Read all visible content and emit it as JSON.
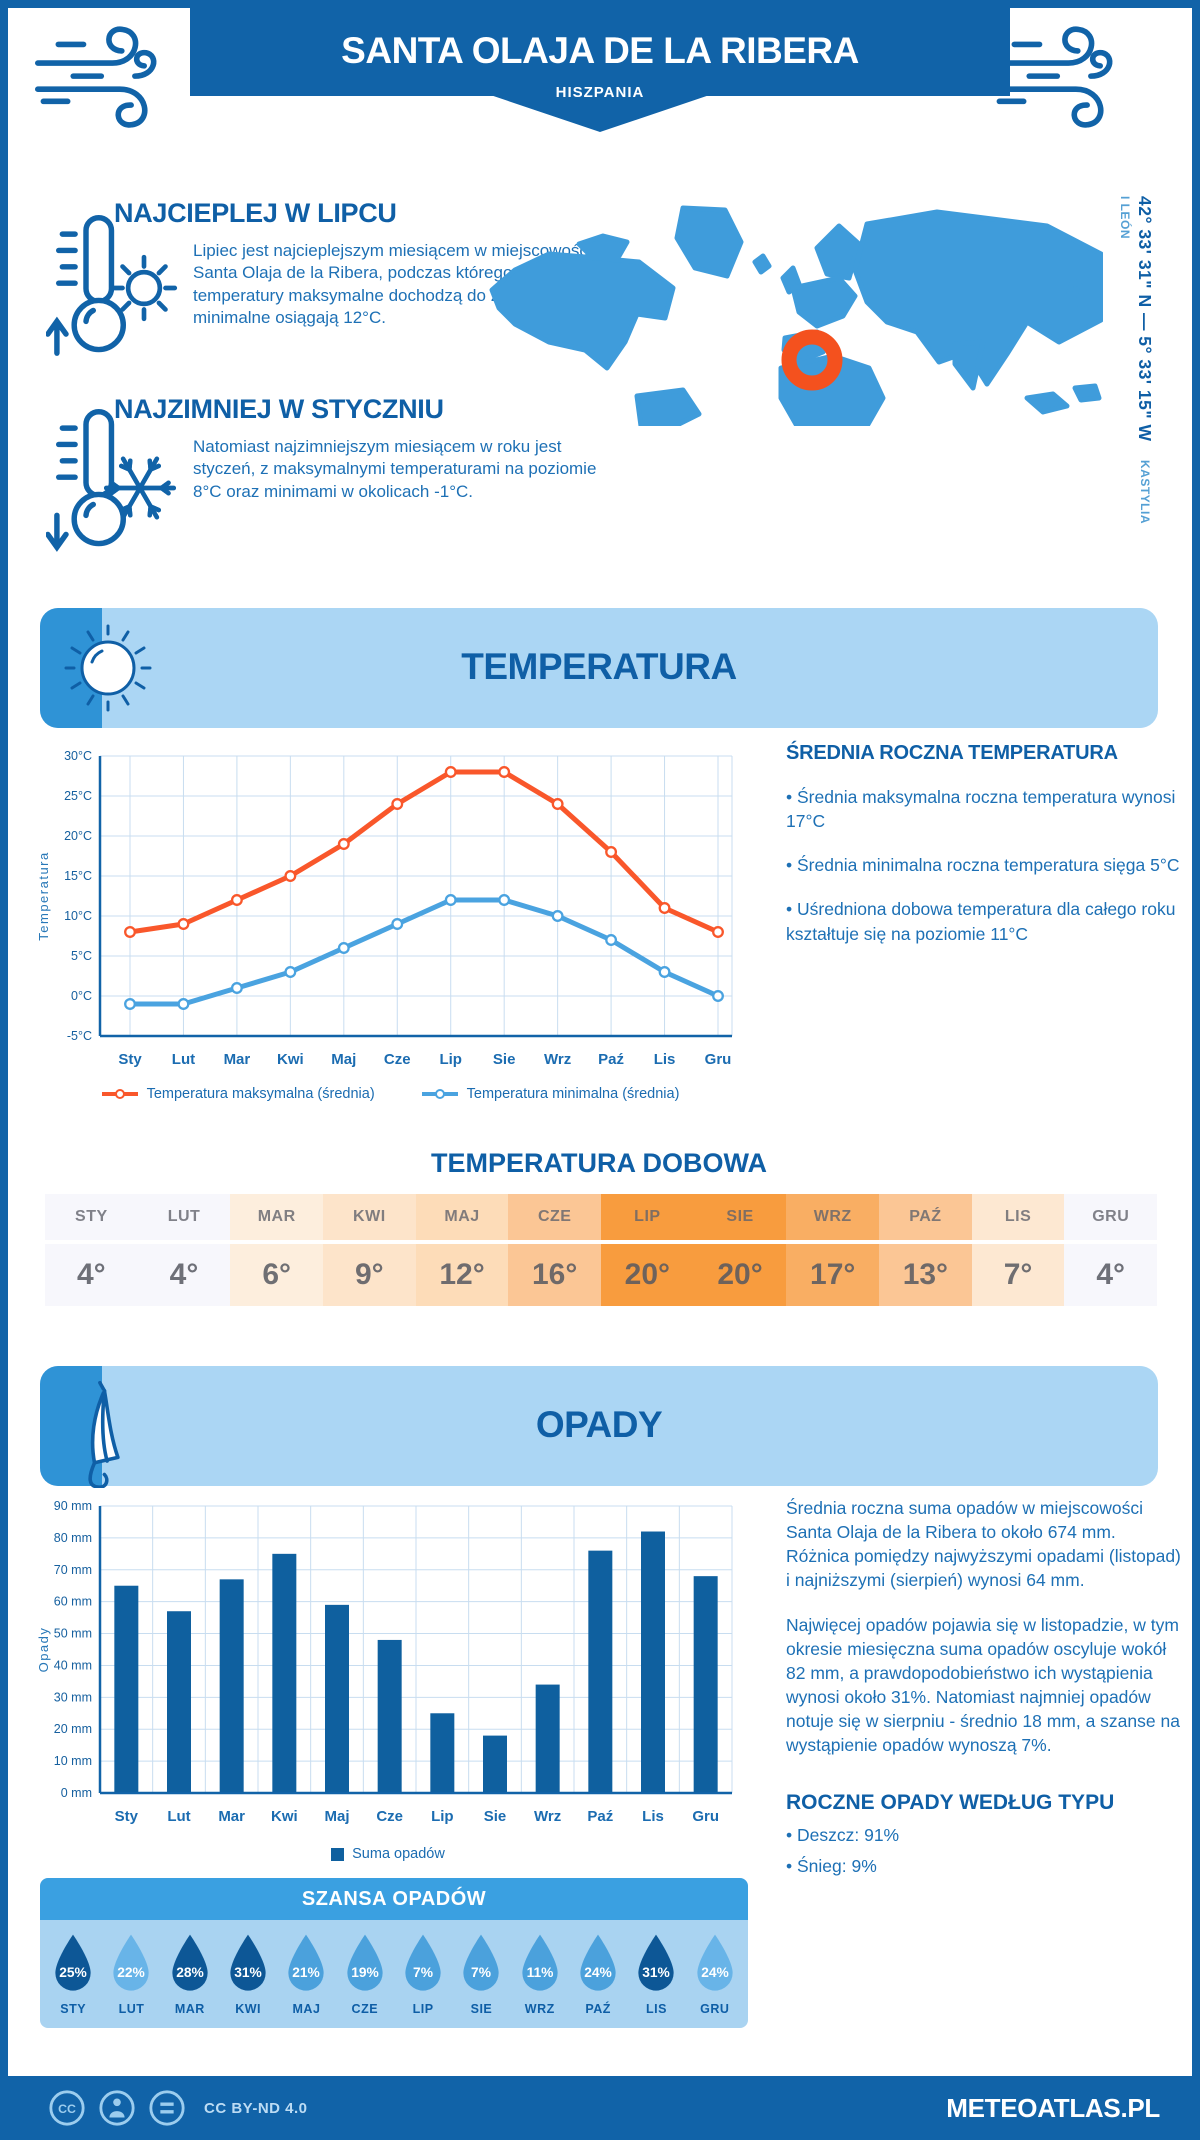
{
  "header": {
    "title": "SANTA OLAJA DE LA RIBERA",
    "subtitle": "HISZPANIA",
    "coordinates": "42° 33' 31\" N — 5° 33' 15\" W",
    "region": "KASTYLIA I LEÓN"
  },
  "highlights": [
    {
      "title": "NAJCIEPLEJ W LIPCU",
      "text": "Lipiec jest najcieplejszym miesiącem w miejscowości Santa Olaja de la Ribera, podczas którego średnie temperatury maksymalne dochodzą do 28°C, a minimalne osiągają 12°C."
    },
    {
      "title": "NAJZIMNIEJ W STYCZNIU",
      "text": "Natomiast najzimniejszym miesiącem w roku jest styczeń, z maksymalnymi temperaturami na poziomie 8°C oraz minimami w okolicach -1°C."
    }
  ],
  "temperature_section": {
    "banner": "TEMPERATURA",
    "sidebar": {
      "heading": "ŚREDNIA ROCZNA TEMPERATURA",
      "bullets": [
        "Średnia maksymalna roczna temperatura wynosi 17°C",
        "Średnia minimalna roczna temperatura sięga 5°C",
        "Uśredniona dobowa temperatura dla całego roku kształtuje się na poziomie 11°C"
      ]
    },
    "daily": {
      "heading": "TEMPERATURA DOBOWA",
      "months": [
        "STY",
        "LUT",
        "MAR",
        "KWI",
        "MAJ",
        "CZE",
        "LIP",
        "SIE",
        "WRZ",
        "PAŹ",
        "LIS",
        "GRU"
      ],
      "values": [
        "4°",
        "4°",
        "6°",
        "9°",
        "12°",
        "16°",
        "20°",
        "20°",
        "17°",
        "13°",
        "7°",
        "4°"
      ],
      "cell_colors": [
        "#f7f7fc",
        "#f7f7fc",
        "#fdeedd",
        "#fde4ca",
        "#fddcb8",
        "#fbc695",
        "#f89c3e",
        "#f89c3e",
        "#f9ae63",
        "#fbc695",
        "#fde8d2",
        "#f7f7fc"
      ]
    }
  },
  "precipitation_section": {
    "banner": "OPADY",
    "text1": "Średnia roczna suma opadów w miejscowości Santa Olaja de la Ribera to około 674 mm. Różnica pomiędzy najwyższymi opadami (listopad) i najniższymi (sierpień) wynosi 64 mm.",
    "text2": "Najwięcej opadów pojawia się w listopadzie, w tym okresie miesięczna suma opadów oscyluje wokół 82 mm, a prawdopodobieństwo ich wystąpienia wynosi około 31%. Natomiast najmniej opadów notuje się w sierpniu - średnio 18 mm, a szanse na wystąpienie opadów wynoszą 7%.",
    "type_heading": "ROCZNE OPADY WEDŁUG TYPU",
    "type_bullets": [
      "Deszcz: 91%",
      "Śnieg: 9%"
    ],
    "chance": {
      "heading": "SZANSA OPADÓW",
      "months": [
        "STY",
        "LUT",
        "MAR",
        "KWI",
        "MAJ",
        "CZE",
        "LIP",
        "SIE",
        "WRZ",
        "PAŹ",
        "LIS",
        "GRU"
      ],
      "values": [
        "25%",
        "22%",
        "28%",
        "31%",
        "21%",
        "19%",
        "7%",
        "7%",
        "11%",
        "24%",
        "31%",
        "24%"
      ],
      "tiers": [
        "dark",
        "light",
        "dark",
        "dark",
        "mid",
        "mid",
        "mid",
        "mid",
        "mid",
        "mid",
        "dark",
        "light"
      ],
      "tier_colors": {
        "dark": "#0d5796",
        "mid": "#4ba1dc",
        "light": "#68b4e8"
      }
    }
  },
  "chart_data": [
    {
      "type": "line",
      "title": "Temperatura",
      "categories": [
        "Sty",
        "Lut",
        "Mar",
        "Kwi",
        "Maj",
        "Cze",
        "Lip",
        "Sie",
        "Wrz",
        "Paź",
        "Lis",
        "Gru"
      ],
      "series": [
        {
          "name": "Temperatura maksymalna (średnia)",
          "color": "#f9572b",
          "values": [
            8,
            9,
            12,
            15,
            19,
            24,
            28,
            28,
            24,
            18,
            11,
            8
          ]
        },
        {
          "name": "Temperatura minimalna (średnia)",
          "color": "#4aa3e0",
          "values": [
            -1,
            -1,
            1,
            3,
            6,
            9,
            12,
            12,
            10,
            7,
            3,
            0
          ]
        }
      ],
      "ylabel": "Temperatura",
      "ylim": [
        -5,
        30
      ],
      "ytick_step": 5,
      "ytick_suffix": "°C",
      "grid": true,
      "legend_position": "bottom"
    },
    {
      "type": "bar",
      "title": "Opady",
      "categories": [
        "Sty",
        "Lut",
        "Mar",
        "Kwi",
        "Maj",
        "Cze",
        "Lip",
        "Sie",
        "Wrz",
        "Paź",
        "Lis",
        "Gru"
      ],
      "series": [
        {
          "name": "Suma opadów",
          "color": "#0f609f",
          "values": [
            65,
            57,
            67,
            75,
            59,
            48,
            25,
            18,
            34,
            76,
            82,
            68
          ]
        }
      ],
      "ylabel": "Opady",
      "ylim": [
        0,
        90
      ],
      "ytick_step": 10,
      "ytick_suffix": " mm",
      "grid": true,
      "legend_position": "bottom"
    }
  ],
  "footer": {
    "license": "CC BY-ND 4.0",
    "brand": "METEOATLAS.PL"
  },
  "colors": {
    "primary": "#1163a8",
    "heading": "#0f5fa6",
    "body_text": "#1d70b5",
    "banner_light": "#abd6f4",
    "banner_side": "#2f93d6",
    "grid": "#c8ddf0",
    "map": "#3f9cdb",
    "marker": "#f4511e",
    "line_max": "#f9572b",
    "line_min": "#4aa3e0",
    "bar": "#0f609f"
  }
}
